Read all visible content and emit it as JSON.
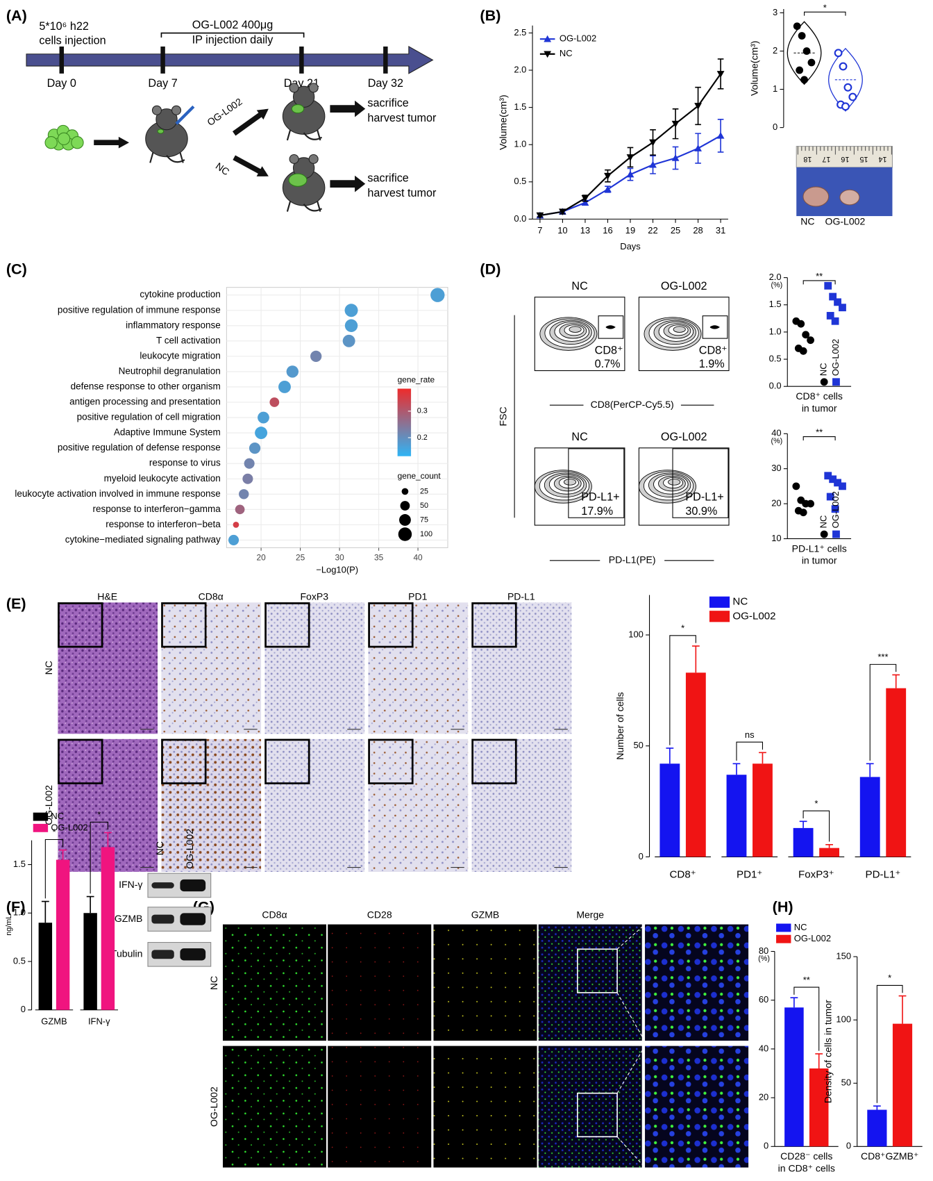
{
  "panels": [
    "(A)",
    "(B)",
    "(C)",
    "(D)",
    "(E)",
    "(F)",
    "(G)",
    "(H)"
  ],
  "panel_a": {
    "injection": [
      "5*10⁶ h22",
      "cells injection"
    ],
    "treatment": [
      "OG-L002 400μg",
      "IP injection daily"
    ],
    "days": [
      "Day 0",
      "Day 7",
      "Day 21",
      "Day 32"
    ],
    "arms": [
      "OG-L002",
      "NC"
    ],
    "outcome": [
      "sacrifice",
      "harvest tumor"
    ]
  },
  "panel_b": {
    "ruler": [
      "18",
      "17",
      "16",
      "15",
      "14"
    ]
  },
  "panel_d": {
    "groups": [
      "NC",
      "OG-L002"
    ],
    "fsc": "FSC",
    "cd8_axis": "CD8(PerCP-Cy5.5)",
    "pdl1_axis": "PD-L1(PE)",
    "cd8_gates": [
      {
        "label": "CD8⁺",
        "pct": "0.7%"
      },
      {
        "label": "CD8⁺",
        "pct": "1.9%"
      }
    ],
    "pdl1_gates": [
      {
        "label": "PD-L1+",
        "pct": "17.9%"
      },
      {
        "label": "PD-L1+",
        "pct": "30.9%"
      }
    ]
  },
  "panel_e": {
    "stains": [
      "H&E",
      "CD8α",
      "FoxP3",
      "PD1",
      "PD-L1"
    ],
    "rows": [
      "NC",
      "OG-L002"
    ]
  },
  "panel_f": {
    "lanes": [
      "NC",
      "OG-L002"
    ],
    "bands": [
      "IFN-γ",
      "GZMB",
      "Tubulin"
    ]
  },
  "panel_g": {
    "channels": [
      "CD8α",
      "CD28",
      "GZMB",
      "Merge"
    ],
    "rows": [
      "NC",
      "OG-L002"
    ]
  },
  "chart_data": [
    {
      "type": "line",
      "x": [
        7,
        10,
        13,
        16,
        19,
        22,
        25,
        28,
        31
      ],
      "xlim": [
        6,
        32
      ],
      "xticks": [
        7,
        10,
        13,
        16,
        19,
        22,
        25,
        28,
        31
      ],
      "ylim": [
        0,
        2.6
      ],
      "yticks": [
        {
          "value": 0,
          "label": "0.0"
        },
        0.5,
        {
          "value": 1,
          "label": "1.0"
        },
        1.5,
        {
          "value": 2,
          "label": "2.0"
        },
        2.5
      ],
      "xlabel": "Days",
      "ylabel": "Volume(cm³)",
      "legend": "upper left",
      "series": [
        {
          "name": "OG-L002",
          "color": "#1f35d6",
          "marker": "triangle-up",
          "values": [
            0.05,
            0.1,
            0.22,
            0.4,
            0.6,
            0.73,
            0.82,
            0.95,
            1.12
          ],
          "errors": [
            0.02,
            0.02,
            0.03,
            0.04,
            0.08,
            0.12,
            0.15,
            0.2,
            0.22
          ]
        },
        {
          "name": "NC",
          "color": "#000000",
          "marker": "triangle-down",
          "values": [
            0.05,
            0.1,
            0.28,
            0.58,
            0.83,
            1.03,
            1.28,
            1.52,
            1.95
          ],
          "errors": [
            0.02,
            0.03,
            0.04,
            0.08,
            0.13,
            0.17,
            0.2,
            0.25,
            0.2
          ]
        }
      ]
    },
    {
      "type": "strip",
      "violin": true,
      "ylim": [
        0,
        3.1
      ],
      "yticks": [
        0,
        1,
        2,
        3
      ],
      "ylabel": "Volume(cm³)",
      "annotation": "*",
      "series": [
        {
          "name": "NC",
          "color": "#000000",
          "marker": "circle",
          "values": [
            2.65,
            2.4,
            2.0,
            1.7,
            1.5,
            1.25
          ]
        },
        {
          "name": "OG-L002",
          "color": "#1f35d6",
          "marker": "circle-open",
          "values": [
            1.95,
            1.6,
            1.05,
            0.8,
            0.6,
            0.55
          ]
        }
      ]
    },
    {
      "type": "bubble",
      "categories": [
        "cytokine production",
        "positive regulation of immune response",
        "inflammatory response",
        "T cell activation",
        "leukocyte migration",
        "Neutrophil degranulation",
        "defense response to other organism",
        "antigen processing and presentation",
        "positive regulation of cell migration",
        "Adaptive Immune System",
        "positive regulation of defense response",
        "response to virus",
        "myeloid leukocyte activation",
        "leukocyte activation involved in immune response",
        "response to interferon−gamma",
        "response to interferon−beta",
        "cytokine−mediated signaling pathway"
      ],
      "values": [
        42.5,
        31.5,
        31.5,
        31.2,
        27,
        24,
        23,
        21.7,
        20.3,
        20,
        19.2,
        18.5,
        18.3,
        17.8,
        17.3,
        16.8,
        16.5
      ],
      "gene_count": [
        110,
        95,
        90,
        85,
        70,
        80,
        85,
        50,
        75,
        85,
        70,
        60,
        60,
        55,
        50,
        20,
        60
      ],
      "gene_rate": [
        0.17,
        0.17,
        0.17,
        0.19,
        0.22,
        0.18,
        0.17,
        0.32,
        0.17,
        0.16,
        0.19,
        0.22,
        0.23,
        0.22,
        0.28,
        0.35,
        0.17
      ],
      "xlim": [
        15.6,
        43.8
      ],
      "xticks": [
        20,
        25,
        30,
        35,
        40
      ],
      "xlabel": "−Log10(P)",
      "grid": true,
      "color_legend_title": "gene_rate",
      "colorlim": [
        0.13,
        0.385
      ],
      "color_range": [
        "#2fb4f5",
        "#ee2b2b"
      ],
      "color_ticks": [
        0.2,
        0.3
      ],
      "size_legend_title": "gene_count",
      "size_ticks": [
        25,
        50,
        75,
        100
      ]
    },
    {
      "type": "strip",
      "ylim": [
        0,
        2
      ],
      "yticks": [
        {
          "value": 0,
          "label": "0.0"
        },
        0.5,
        {
          "value": 1,
          "label": "1.0"
        },
        1.5,
        {
          "value": 2,
          "label": "2.0"
        }
      ],
      "ylabel": "(%)",
      "xlabel": [
        "CD8⁺ cells",
        "in tumor"
      ],
      "annotation": "**",
      "legend": "rotated",
      "series": [
        {
          "name": "NC",
          "color": "#000000",
          "marker": "circle",
          "values": [
            1.2,
            1.15,
            0.95,
            0.85,
            0.7,
            0.65
          ]
        },
        {
          "name": "OG-L002",
          "color": "#1f35d6",
          "marker": "square",
          "values": [
            1.85,
            1.65,
            1.55,
            1.45,
            1.3,
            1.2
          ]
        }
      ]
    },
    {
      "type": "strip",
      "ylim": [
        10,
        40
      ],
      "yticks": [
        10,
        20,
        30,
        40
      ],
      "ylabel": "(%)",
      "xlabel": [
        "PD-L1⁺ cells",
        "in tumor"
      ],
      "annotation": "**",
      "legend": "rotated",
      "series": [
        {
          "name": "NC",
          "color": "#000000",
          "marker": "circle",
          "values": [
            25,
            21,
            20,
            20,
            18,
            17.5
          ]
        },
        {
          "name": "OG-L002",
          "color": "#1f35d6",
          "marker": "square",
          "values": [
            28,
            27,
            26,
            25,
            22,
            18.5
          ]
        }
      ]
    },
    {
      "type": "bar",
      "categories": [
        "CD8⁺",
        "PD1⁺",
        "FoxP3⁺",
        "PD-L1⁺"
      ],
      "ylim": [
        0,
        118
      ],
      "yticks": [
        0,
        50,
        100
      ],
      "ylabel": "Number of cells",
      "legend": "top",
      "annotations": [
        "*",
        "ns",
        "*",
        "***"
      ],
      "series": [
        {
          "name": "NC",
          "color": "#1414f0",
          "values": [
            42,
            37,
            13,
            36
          ],
          "errors": [
            7,
            5,
            3,
            6
          ]
        },
        {
          "name": "OG-L002",
          "color": "#f01414",
          "values": [
            83,
            42,
            4,
            76
          ],
          "errors": [
            12,
            5,
            1.5,
            6
          ]
        }
      ]
    },
    {
      "type": "bar",
      "categories": [
        "GZMB",
        "IFN-γ"
      ],
      "ylim": [
        0,
        1.75
      ],
      "yticks": [
        0,
        0.5,
        {
          "value": 1,
          "label": "1.0"
        },
        1.5
      ],
      "ylabel": "ng/mL",
      "legend": "above",
      "annotations": [
        "*",
        "*"
      ],
      "series": [
        {
          "name": "NC",
          "color": "#000000",
          "values": [
            0.9,
            1.0
          ],
          "errors": [
            0.22,
            0.17
          ]
        },
        {
          "name": "OG-L002",
          "color": "#f0147f",
          "values": [
            1.55,
            1.68
          ],
          "errors": [
            0.1,
            0.15
          ]
        }
      ]
    },
    {
      "type": "bar",
      "categories": [
        null
      ],
      "ylim": [
        0,
        80
      ],
      "yticks": [
        0,
        20,
        40,
        60,
        80
      ],
      "ylabel": "(%)",
      "xlabel": [
        "CD28⁻ cells",
        "in CD8⁺ cells"
      ],
      "legend": "above",
      "annotations": [
        "**"
      ],
      "series": [
        {
          "name": "NC",
          "color": "#1414f0",
          "values": [
            57
          ],
          "errors": [
            4
          ]
        },
        {
          "name": "OG-L002",
          "color": "#f01414",
          "values": [
            32
          ],
          "errors": [
            6
          ]
        }
      ]
    },
    {
      "type": "bar",
      "categories": [
        null
      ],
      "ylim": [
        0,
        150
      ],
      "yticks": [
        0,
        50,
        100,
        150
      ],
      "ylabel": "Density of cells in tumor",
      "xlabel": [
        "CD8⁺GZMB⁺"
      ],
      "annotations": [
        "*"
      ],
      "series": [
        {
          "color": "#1414f0",
          "values": [
            29
          ],
          "errors": [
            3
          ]
        },
        {
          "color": "#f01414",
          "values": [
            97
          ],
          "errors": [
            22
          ]
        }
      ]
    }
  ]
}
